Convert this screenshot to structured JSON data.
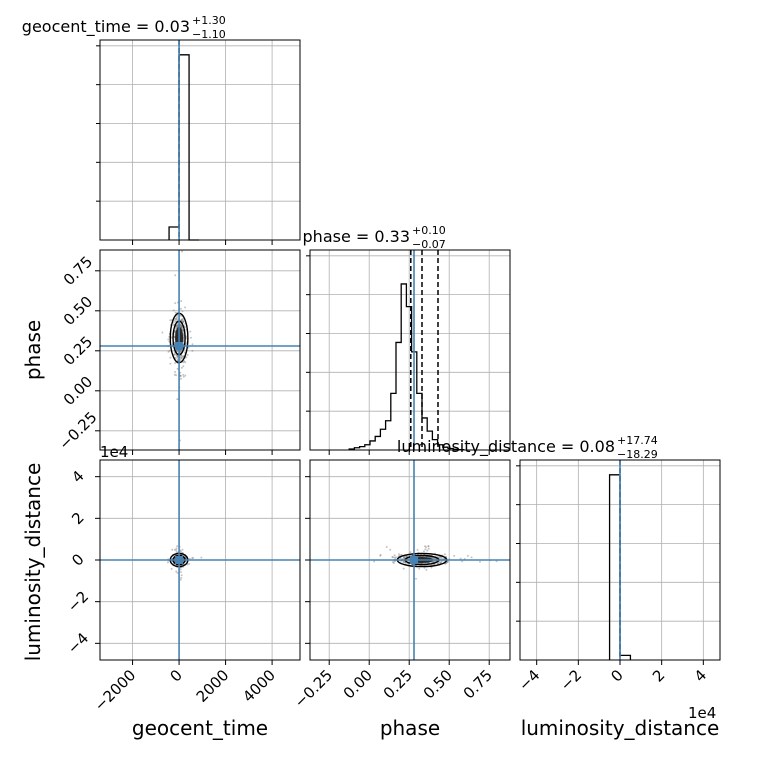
{
  "chart_data": {
    "type": "corner",
    "parameters": [
      "geocent_time",
      "phase",
      "luminosity_distance"
    ],
    "axis_labels": {
      "x": [
        "geocent_time",
        "phase",
        "luminosity_distance"
      ],
      "y": [
        "phase",
        "luminosity_distance"
      ]
    },
    "titles": [
      {
        "name": "geocent_time",
        "value": "0.03",
        "plus": "+1.30",
        "minus": "−1.10"
      },
      {
        "name": "phase",
        "value": "0.33",
        "plus": "+0.10",
        "minus": "−0.07"
      },
      {
        "name": "luminosity_distance",
        "value": "0.08",
        "plus": "+17.74",
        "minus": "−18.29"
      }
    ],
    "title_prefix": " = ",
    "ranges": {
      "geocent_time": [
        -3400,
        5200
      ],
      "phase": [
        -0.37,
        0.88
      ],
      "luminosity_distance": [
        -48000,
        48000
      ]
    },
    "ticks": {
      "geocent_time": [
        -2000,
        0,
        2000,
        4000
      ],
      "phase": [
        -0.25,
        0.0,
        0.25,
        0.5,
        0.75
      ],
      "luminosity_distance": [
        -40000,
        -20000,
        0,
        20000,
        40000
      ]
    },
    "tick_labels": {
      "geocent_time": [
        "−2000",
        "0",
        "2000",
        "4000"
      ],
      "phase": [
        "−0.25",
        "0.00",
        "0.25",
        "0.50",
        "0.75"
      ],
      "luminosity_distance": [
        "−4",
        "−2",
        "0",
        "2",
        "4"
      ]
    },
    "offset_text": "1e4",
    "truths": {
      "geocent_time": 0,
      "phase": 0.28,
      "luminosity_distance": 0
    },
    "quantile_lines": {
      "geocent_time": [
        0.03
      ],
      "phase": [
        0.26,
        0.33,
        0.43
      ],
      "luminosity_distance": [
        0.08
      ]
    },
    "histograms": {
      "geocent_time": {
        "bins": [
          -430,
          -3,
          430,
          860
        ],
        "counts": [
          0.07,
          1.0,
          0.0
        ],
        "ylim": [
          0,
          1.08
        ]
      },
      "phase": {
        "bins": [
          -0.125,
          -0.0925,
          -0.06,
          -0.0275,
          0.005,
          0.0375,
          0.07,
          0.1025,
          0.135,
          0.1675,
          0.2,
          0.2325,
          0.265,
          0.2975,
          0.33,
          0.3625,
          0.395,
          0.4275,
          0.46,
          0.4925,
          0.525,
          0.5575,
          0.59
        ],
        "counts": [
          0.005,
          0.012,
          0.018,
          0.028,
          0.048,
          0.072,
          0.11,
          0.155,
          0.3,
          0.57,
          0.88,
          0.76,
          0.52,
          0.3,
          0.17,
          0.1,
          0.055,
          0.028,
          0.015,
          0.008,
          0.004,
          0.002
        ],
        "ylim": [
          0,
          1.06
        ]
      },
      "luminosity_distance": {
        "bins": [
          -5000,
          0,
          5000
        ],
        "counts": [
          1.0,
          0.025
        ],
        "ylim": [
          0,
          1.08
        ]
      }
    },
    "grid": true
  }
}
